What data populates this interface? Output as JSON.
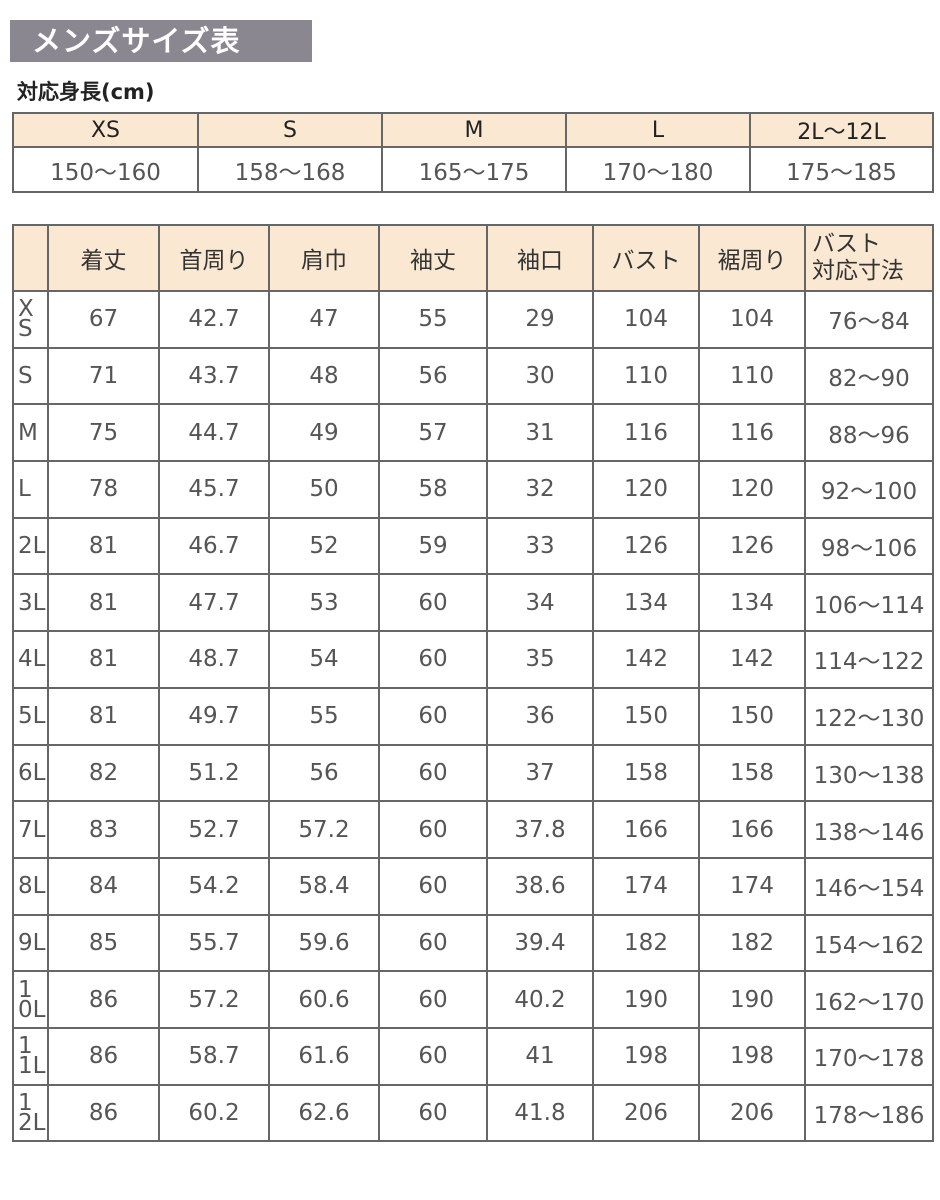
{
  "title": "メンズサイズ表",
  "height_section": {
    "label": "対応身長(cm)",
    "sizes": [
      "XS",
      "S",
      "M",
      "L",
      "2L〜12L"
    ],
    "heights": [
      "150〜160",
      "158〜168",
      "165〜175",
      "170〜180",
      "175〜185"
    ]
  },
  "size_table": {
    "columns": [
      "着丈",
      "首周り",
      "肩巾",
      "袖丈",
      "袖口",
      "バスト",
      "裾周り"
    ],
    "last_column": [
      "バスト",
      "対応寸法"
    ],
    "rows": [
      {
        "size": "XS",
        "values": [
          "67",
          "42.7",
          "47",
          "55",
          "29",
          "104",
          "104",
          "76〜84"
        ]
      },
      {
        "size": "S",
        "values": [
          "71",
          "43.7",
          "48",
          "56",
          "30",
          "110",
          "110",
          "82〜90"
        ]
      },
      {
        "size": "M",
        "values": [
          "75",
          "44.7",
          "49",
          "57",
          "31",
          "116",
          "116",
          "88〜96"
        ]
      },
      {
        "size": "L",
        "values": [
          "78",
          "45.7",
          "50",
          "58",
          "32",
          "120",
          "120",
          "92〜100"
        ]
      },
      {
        "size": "2L",
        "values": [
          "81",
          "46.7",
          "52",
          "59",
          "33",
          "126",
          "126",
          "98〜106"
        ]
      },
      {
        "size": "3L",
        "values": [
          "81",
          "47.7",
          "53",
          "60",
          "34",
          "134",
          "134",
          "106〜114"
        ]
      },
      {
        "size": "4L",
        "values": [
          "81",
          "48.7",
          "54",
          "60",
          "35",
          "142",
          "142",
          "114〜122"
        ]
      },
      {
        "size": "5L",
        "values": [
          "81",
          "49.7",
          "55",
          "60",
          "36",
          "150",
          "150",
          "122〜130"
        ]
      },
      {
        "size": "6L",
        "values": [
          "82",
          "51.2",
          "56",
          "60",
          "37",
          "158",
          "158",
          "130〜138"
        ]
      },
      {
        "size": "7L",
        "values": [
          "83",
          "52.7",
          "57.2",
          "60",
          "37.8",
          "166",
          "166",
          "138〜146"
        ]
      },
      {
        "size": "8L",
        "values": [
          "84",
          "54.2",
          "58.4",
          "60",
          "38.6",
          "174",
          "174",
          "146〜154"
        ]
      },
      {
        "size": "9L",
        "values": [
          "85",
          "55.7",
          "59.6",
          "60",
          "39.4",
          "182",
          "182",
          "154〜162"
        ]
      },
      {
        "size": "10L",
        "values": [
          "86",
          "57.2",
          "60.6",
          "60",
          "40.2",
          "190",
          "190",
          "162〜170"
        ]
      },
      {
        "size": "11L",
        "values": [
          "86",
          "58.7",
          "61.6",
          "60",
          "41",
          "198",
          "198",
          "170〜178"
        ]
      },
      {
        "size": "12L",
        "values": [
          "86",
          "60.2",
          "62.6",
          "60",
          "41.8",
          "206",
          "206",
          "178〜186"
        ]
      }
    ]
  },
  "colors": {
    "title_bg": "#8b8791",
    "header_bg": "#fbe8d3",
    "border": "#666666"
  }
}
